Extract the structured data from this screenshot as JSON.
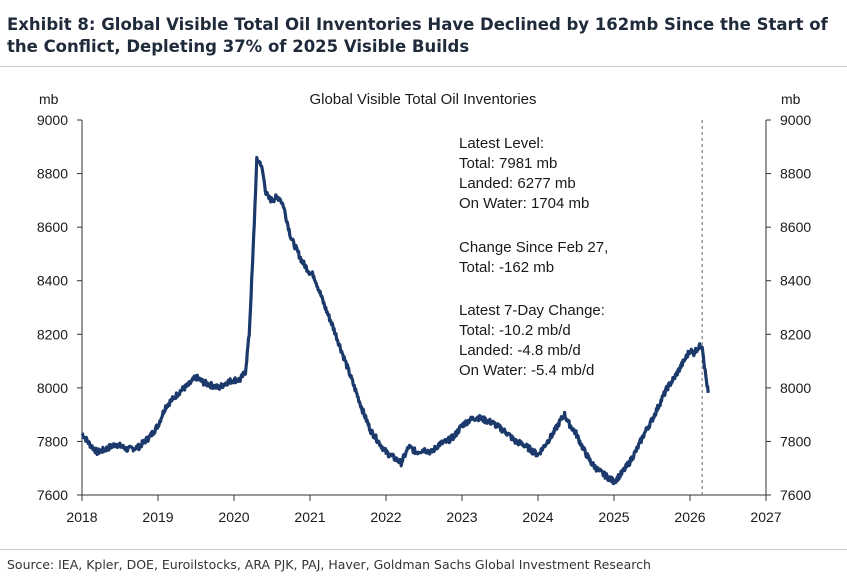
{
  "exhibit_title": "Exhibit 8: Global Visible Total Oil Inventories Have Declined by 162mb Since the Start of the Conflict, Depleting 37% of 2025 Visible Builds",
  "source": "Source: IEA, Kpler, DOE, Euroilstocks, ARA PJK, PAJ, Haver, Goldman Sachs Global Investment Research",
  "chart_data": {
    "type": "line",
    "title": "Global Visible Total Oil Inventories",
    "ylabel_left": "mb",
    "ylabel_right": "mb",
    "xlim": [
      2018,
      2027
    ],
    "ylim": [
      7600,
      9000
    ],
    "x_ticks": [
      "2018",
      "2019",
      "2020",
      "2021",
      "2022",
      "2023",
      "2024",
      "2025",
      "2026",
      "2027"
    ],
    "y_ticks": [
      "7600",
      "7800",
      "8000",
      "8200",
      "8400",
      "8600",
      "8800",
      "9000"
    ],
    "grid": false,
    "series_color": "#1b3a6b",
    "event_line_x": 2026.16,
    "series": [
      {
        "x": [
          2018.0,
          2018.1,
          2018.2,
          2018.3,
          2018.45,
          2018.6,
          2018.75,
          2018.9,
          2019.0,
          2019.1,
          2019.2,
          2019.3,
          2019.4,
          2019.5,
          2019.6,
          2019.7,
          2019.8,
          2019.9,
          2020.0,
          2020.08,
          2020.15,
          2020.2,
          2020.25,
          2020.3,
          2020.35,
          2020.38,
          2020.42,
          2020.45,
          2020.5,
          2020.55,
          2020.6,
          2020.65,
          2020.7,
          2020.75,
          2020.8,
          2020.85,
          2020.9,
          2020.95,
          2021.0,
          2021.05,
          2021.1,
          2021.2,
          2021.3,
          2021.4,
          2021.5,
          2021.6,
          2021.7,
          2021.8,
          2021.9,
          2022.0,
          2022.1,
          2022.2,
          2022.3,
          2022.4,
          2022.5,
          2022.6,
          2022.7,
          2022.8,
          2022.9,
          2023.0,
          2023.1,
          2023.2,
          2023.3,
          2023.4,
          2023.5,
          2023.6,
          2023.7,
          2023.8,
          2023.9,
          2024.0,
          2024.1,
          2024.2,
          2024.3,
          2024.35,
          2024.4,
          2024.5,
          2024.6,
          2024.7,
          2024.8,
          2024.9,
          2025.0,
          2025.1,
          2025.2,
          2025.3,
          2025.4,
          2025.5,
          2025.6,
          2025.7,
          2025.8,
          2025.9,
          2026.0,
          2026.05,
          2026.1,
          2026.16,
          2026.2,
          2026.24
        ],
        "y": [
          7830,
          7790,
          7760,
          7770,
          7790,
          7770,
          7780,
          7820,
          7860,
          7930,
          7960,
          7990,
          8010,
          8040,
          8020,
          8010,
          8000,
          8020,
          8030,
          8030,
          8060,
          8200,
          8500,
          8850,
          8840,
          8800,
          8730,
          8710,
          8700,
          8710,
          8710,
          8680,
          8620,
          8560,
          8530,
          8500,
          8470,
          8450,
          8430,
          8420,
          8380,
          8300,
          8230,
          8150,
          8070,
          7990,
          7910,
          7840,
          7800,
          7760,
          7740,
          7720,
          7780,
          7760,
          7770,
          7760,
          7790,
          7800,
          7820,
          7860,
          7880,
          7890,
          7880,
          7870,
          7850,
          7830,
          7800,
          7790,
          7770,
          7750,
          7790,
          7830,
          7880,
          7900,
          7870,
          7830,
          7770,
          7720,
          7690,
          7670,
          7650,
          7680,
          7720,
          7770,
          7830,
          7880,
          7940,
          8000,
          8040,
          8090,
          8140,
          8130,
          8150,
          8160,
          8060,
          7981
        ]
      }
    ],
    "annotations": [
      "Latest Level:",
      "Total: 7981 mb",
      "Landed: 6277 mb",
      "On Water: 1704 mb",
      "Change Since Feb 27,",
      "Total: -162 mb",
      "Latest 7-Day Change:",
      "Total: -10.2 mb/d",
      "Landed: -4.8 mb/d",
      "On Water: -5.4 mb/d"
    ]
  }
}
